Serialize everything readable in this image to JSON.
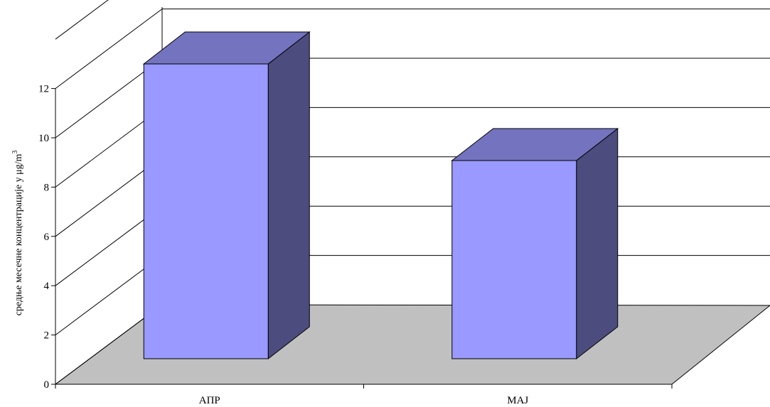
{
  "chart_data": {
    "type": "bar",
    "categories": [
      "АПР",
      "МАЈ"
    ],
    "values": [
      11.9,
      8.0
    ],
    "ylabel": "средње месечне концентрације у μg/m",
    "ylabel_superscript": "3",
    "ylim": [
      0,
      12
    ],
    "yticks": [
      "0",
      "2",
      "4",
      "6",
      "8",
      "10",
      "12"
    ],
    "grid": true,
    "three_d": true,
    "colors": {
      "bar_front": "#9999ff",
      "bar_top": "#7373bf",
      "bar_side": "#4c4c7f",
      "floor": "#c0c0c0"
    }
  }
}
